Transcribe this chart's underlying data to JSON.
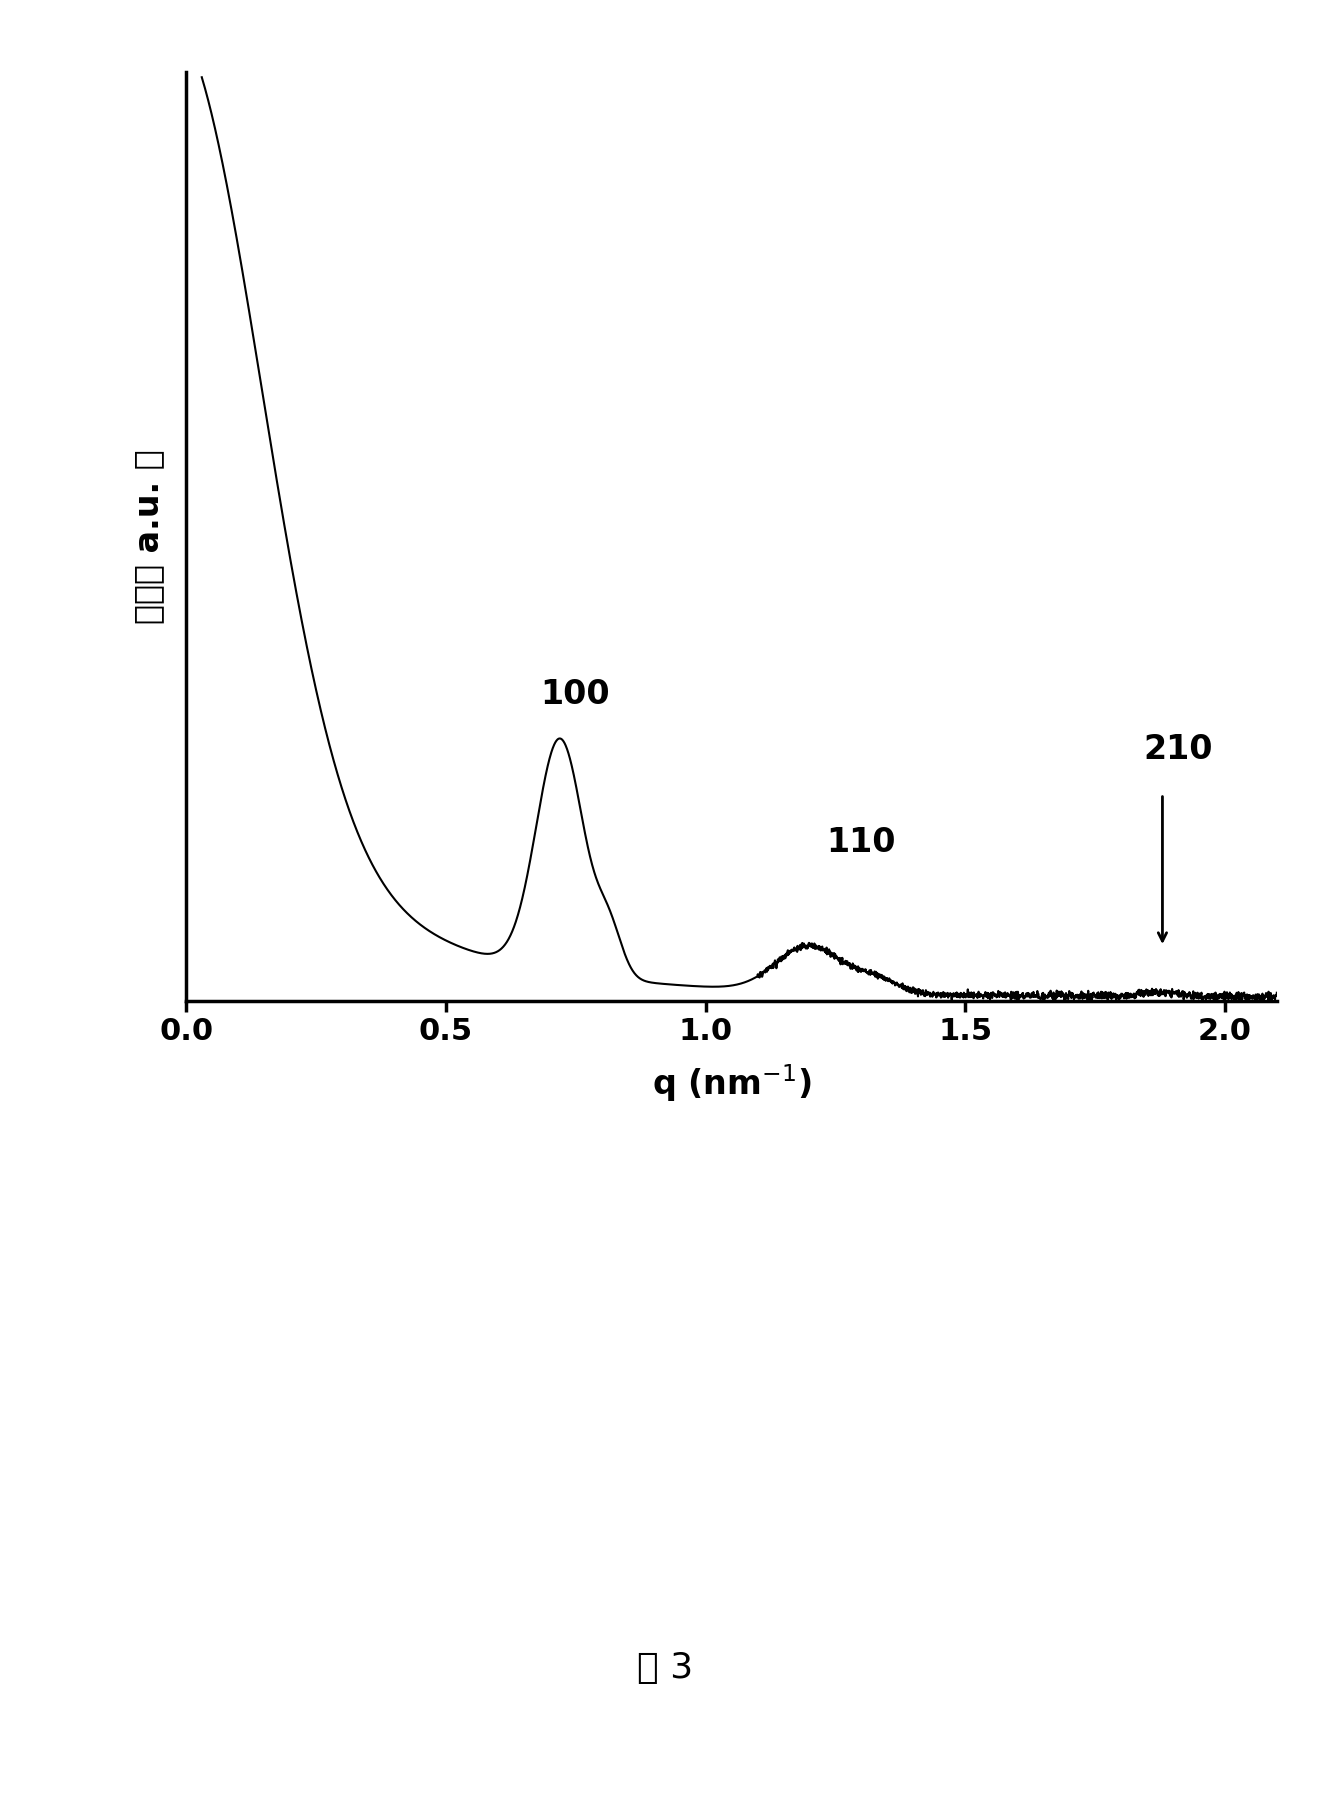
{
  "xlim": [
    0.0,
    2.1
  ],
  "xticks": [
    0.0,
    0.5,
    1.0,
    1.5,
    2.0
  ],
  "xlabel": "q (nm$^{-1}$)",
  "ylabel": "强度（ a.u. ）",
  "peak_100_label": "100",
  "peak_110_label": "110",
  "peak_210_label": "210",
  "figure_label": "图 3",
  "line_color": "#000000",
  "background_color": "#ffffff",
  "label_fontsize": 24,
  "tick_fontsize": 22,
  "annotation_fontsize": 24
}
